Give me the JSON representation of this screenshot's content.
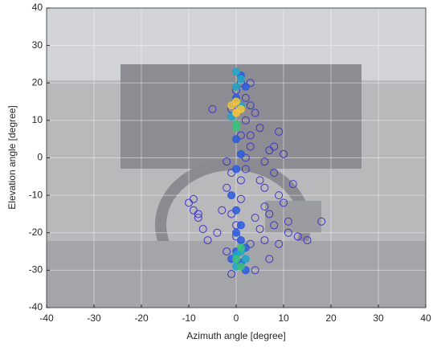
{
  "chart_data": {
    "type": "scatter",
    "xlabel": "Azimuth angle [degree]",
    "ylabel": "Elevation angle [degree]",
    "xlim": [
      -40,
      40
    ],
    "ylim": [
      -40,
      40
    ],
    "xticks": [
      -40,
      -30,
      -20,
      -10,
      0,
      10,
      20,
      30,
      40
    ],
    "yticks": [
      -40,
      -30,
      -20,
      -10,
      0,
      10,
      20,
      30,
      40
    ],
    "grid": true,
    "series": [
      {
        "color": "#3d33c8",
        "marker": "open",
        "x": [
          -5,
          3,
          4,
          5,
          8,
          9,
          7,
          10,
          6,
          8,
          5,
          6,
          9,
          12,
          10,
          7,
          8,
          11,
          13,
          15,
          18,
          11,
          6,
          7,
          9,
          4,
          -1,
          -2,
          -4,
          -6,
          -7,
          -8,
          -9,
          -10,
          -9,
          -8,
          -3,
          -2,
          -1,
          -2,
          1,
          0,
          2,
          3,
          1,
          2,
          0,
          1,
          3,
          2,
          -1,
          4,
          5,
          3,
          0,
          -1,
          6,
          3,
          2,
          1
        ],
        "y": [
          13,
          14,
          12,
          8,
          3,
          7,
          2,
          1,
          -1,
          -4,
          -6,
          -8,
          -10,
          -7,
          -12,
          -15,
          -18,
          -20,
          -21,
          -22,
          -17,
          -17,
          -22,
          -27,
          -23,
          -30,
          -31,
          -25,
          -20,
          -22,
          -19,
          -15,
          -14,
          -12,
          -11,
          -16,
          -14,
          -8,
          -4,
          -1,
          -11,
          -21,
          -3,
          3,
          6,
          10,
          18,
          20,
          20,
          16,
          13,
          -16,
          -19,
          -23,
          -18,
          -15,
          -13,
          6,
          0,
          -6
        ]
      },
      {
        "color": "#2a5cdc",
        "marker": "filled",
        "x": [
          0,
          1,
          2,
          -1,
          0,
          1,
          0,
          1,
          0,
          -1,
          0,
          1,
          2,
          -1,
          0,
          1,
          2
        ],
        "y": [
          -25,
          -28,
          -30,
          -27,
          -20,
          -22,
          -3,
          1,
          5,
          -10,
          -14,
          22,
          19,
          14,
          16,
          -18,
          -24
        ]
      },
      {
        "color": "#1fa6c9",
        "marker": "filled",
        "x": [
          0,
          1,
          0,
          -1,
          0,
          1,
          0,
          2,
          1
        ],
        "y": [
          23,
          21,
          19,
          11,
          -26,
          -25,
          -29,
          -27,
          14
        ]
      },
      {
        "color": "#3cbf7a",
        "marker": "filled",
        "x": [
          0,
          1,
          0,
          0,
          1
        ],
        "y": [
          -27,
          -24,
          8,
          9,
          -29
        ]
      },
      {
        "color": "#f5c53a",
        "marker": "filled",
        "x": [
          0,
          0,
          -1,
          1
        ],
        "y": [
          12,
          15,
          14,
          13
        ]
      }
    ]
  }
}
